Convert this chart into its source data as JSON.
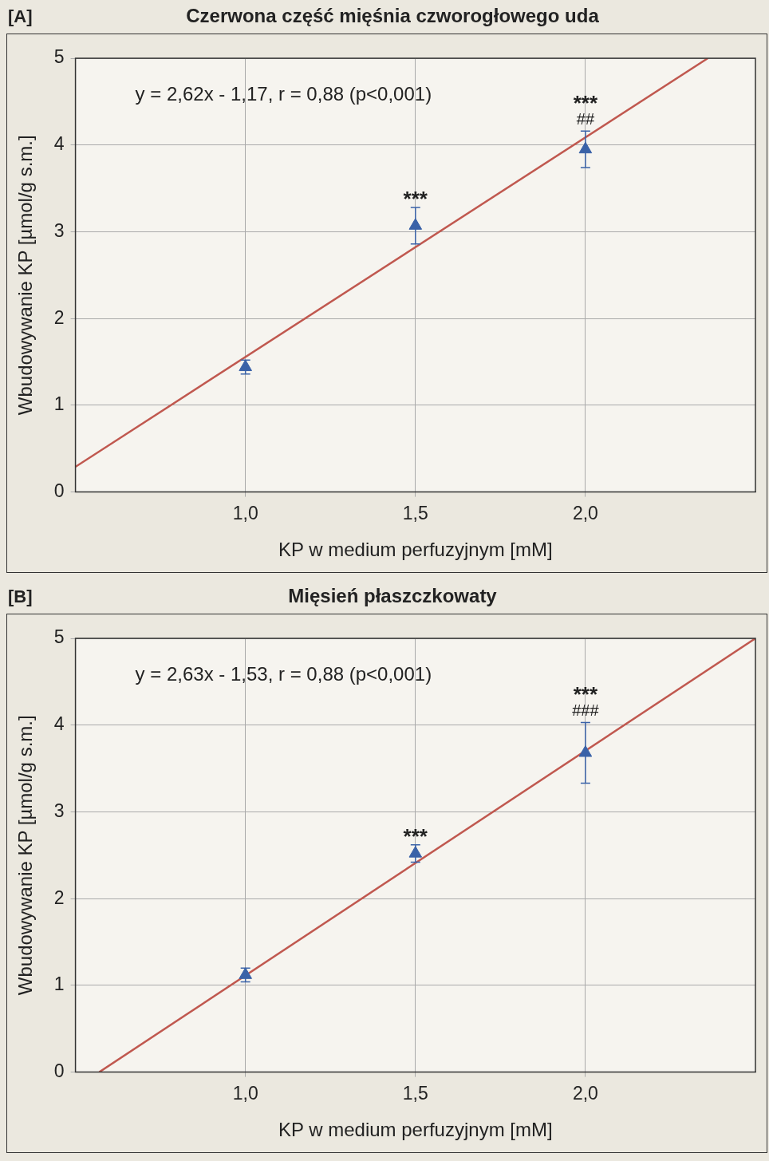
{
  "chart_data": [
    {
      "type": "scatter",
      "title": "Czerwona część mięśnia czworogłowego uda",
      "xlabel": "KP w medium perfuzyjnym [mM]",
      "ylabel": "Wbudowywanie KP [µmol/g s.m.]",
      "x": [
        1.0,
        1.5,
        2.0
      ],
      "series": [
        {
          "color": "#3a62a8",
          "marker": "triangle",
          "values": [
            1.44,
            3.07,
            3.95
          ],
          "errors": [
            0.08,
            0.21,
            0.21
          ],
          "value_labels": [
            null,
            "***",
            "##"
          ]
        },
        {
          "type": "line",
          "color": "#c0584f",
          "x": [
            0.5,
            2.36
          ],
          "values": [
            0.29,
            5
          ]
        }
      ],
      "xlim": [
        0.5,
        2.5
      ],
      "xticks": [
        {
          "value": 1,
          "label": "1,0"
        },
        {
          "value": 1.5,
          "label": "1,5"
        },
        {
          "value": 2,
          "label": "2,0"
        }
      ],
      "ylim": [
        0,
        5
      ],
      "yticks": [
        0,
        1,
        2,
        3,
        4,
        5
      ],
      "grid": true,
      "annotations": [
        "[A]",
        "y = 2,62x - 1,17, r = 0,88 (p<0,001)",
        {
          "text": "***",
          "x": 2.0,
          "y": 3.95
        }
      ]
    },
    {
      "type": "scatter",
      "title": "Mięsień płaszczkowaty",
      "xlabel": "KP w medium perfuzyjnym [mM]",
      "ylabel": "Wbudowywanie KP [µmol/g s.m.]",
      "x": [
        1.0,
        1.5,
        2.0
      ],
      "series": [
        {
          "color": "#3a62a8",
          "marker": "triangle",
          "values": [
            1.12,
            2.52,
            3.68
          ],
          "errors": [
            0.08,
            0.1,
            0.35
          ],
          "value_labels": [
            null,
            "***",
            "###"
          ]
        },
        {
          "type": "line",
          "color": "#c0584f",
          "x": [
            0.57,
            2.5
          ],
          "values": [
            0,
            5
          ]
        }
      ],
      "xlim": [
        0.5,
        2.5
      ],
      "xticks": [
        {
          "value": 1,
          "label": "1,0"
        },
        {
          "value": 1.5,
          "label": "1,5"
        },
        {
          "value": 2,
          "label": "2,0"
        }
      ],
      "ylim": [
        0,
        5
      ],
      "yticks": [
        0,
        1,
        2,
        3,
        4,
        5
      ],
      "grid": true,
      "annotations": [
        "[B]",
        "y = 2,63x - 1,53, r = 0,88 (p<0,001)",
        {
          "text": "***",
          "x": 2.0,
          "y": 3.68
        }
      ]
    }
  ]
}
